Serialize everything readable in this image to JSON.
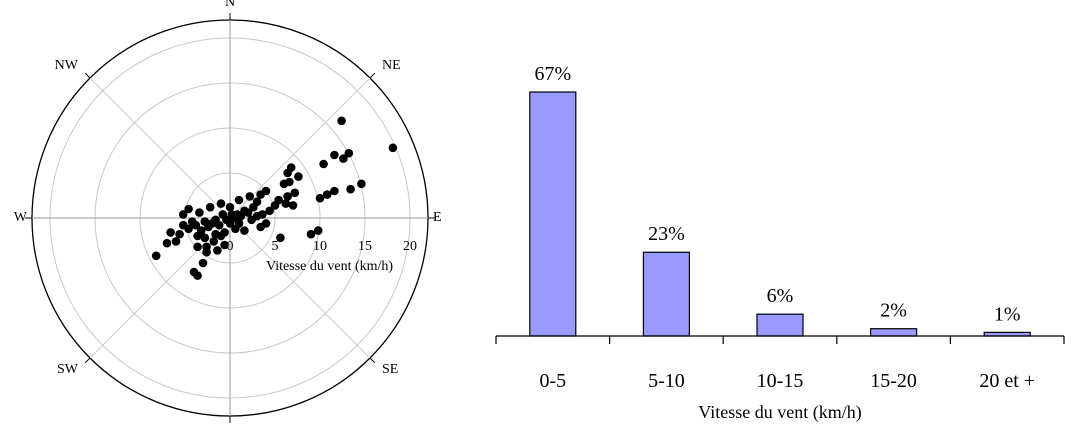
{
  "chart_data": [
    {
      "type": "scatter",
      "coordinate_system": "polar",
      "radial_label": "Vitesse du vent (km/h)",
      "radial_ticks": [
        0,
        5,
        10,
        15,
        20
      ],
      "radial_max": 22,
      "grid": true,
      "directions": [
        {
          "label": "N",
          "angle": 0
        },
        {
          "label": "NE",
          "angle": 45
        },
        {
          "label": "E",
          "angle": 90
        },
        {
          "label": "SE",
          "angle": 135
        },
        {
          "label": "S",
          "angle": 180
        },
        {
          "label": "SW",
          "angle": 225
        },
        {
          "label": "W",
          "angle": 270
        },
        {
          "label": "NW",
          "angle": 315
        }
      ],
      "point_color": "#000000",
      "points": [
        {
          "x": 18.1,
          "y": 7.8
        },
        {
          "x": 12.4,
          "y": 10.8
        },
        {
          "x": 13.2,
          "y": 7.2
        },
        {
          "x": 12.6,
          "y": 6.6
        },
        {
          "x": 11.6,
          "y": 7.0
        },
        {
          "x": 10.4,
          "y": 6.0
        },
        {
          "x": 14.6,
          "y": 3.8
        },
        {
          "x": 13.4,
          "y": 3.2
        },
        {
          "x": 11.6,
          "y": 3.0
        },
        {
          "x": 10.8,
          "y": 2.6
        },
        {
          "x": 10.0,
          "y": 2.2
        },
        {
          "x": 6.8,
          "y": 5.6
        },
        {
          "x": 6.4,
          "y": 5.0
        },
        {
          "x": 7.6,
          "y": 4.6
        },
        {
          "x": 6.6,
          "y": 4.0
        },
        {
          "x": 7.2,
          "y": 2.8
        },
        {
          "x": 6.4,
          "y": 2.4
        },
        {
          "x": 7.0,
          "y": 1.4
        },
        {
          "x": 6.2,
          "y": 1.6
        },
        {
          "x": 6.0,
          "y": 3.8
        },
        {
          "x": 4.0,
          "y": 3.0
        },
        {
          "x": 3.4,
          "y": 2.6
        },
        {
          "x": 5.4,
          "y": 2.0
        },
        {
          "x": 5.0,
          "y": 1.4
        },
        {
          "x": 4.4,
          "y": 0.8
        },
        {
          "x": 3.6,
          "y": 0.4
        },
        {
          "x": 3.0,
          "y": 0.2
        },
        {
          "x": 2.6,
          "y": 1.2
        },
        {
          "x": 2.0,
          "y": 0.6
        },
        {
          "x": 1.6,
          "y": 0.8
        },
        {
          "x": 1.2,
          "y": 0.2
        },
        {
          "x": 0.8,
          "y": 0.4
        },
        {
          "x": 0.4,
          "y": 0.0
        },
        {
          "x": 0.2,
          "y": 0.4
        },
        {
          "x": 4.0,
          "y": -0.6
        },
        {
          "x": 3.4,
          "y": -1.0
        },
        {
          "x": 5.6,
          "y": -2.2
        },
        {
          "x": 9.0,
          "y": -1.8
        },
        {
          "x": 9.8,
          "y": -1.4
        },
        {
          "x": 0.0,
          "y": -0.6
        },
        {
          "x": -0.4,
          "y": -0.2
        },
        {
          "x": -0.8,
          "y": 0.4
        },
        {
          "x": -1.2,
          "y": -0.8
        },
        {
          "x": -1.6,
          "y": -0.2
        },
        {
          "x": -2.0,
          "y": -0.6
        },
        {
          "x": -2.4,
          "y": -1.0
        },
        {
          "x": -2.8,
          "y": -0.4
        },
        {
          "x": -3.2,
          "y": -1.4
        },
        {
          "x": -3.4,
          "y": 0.6
        },
        {
          "x": -3.8,
          "y": -0.8
        },
        {
          "x": -4.2,
          "y": -0.4
        },
        {
          "x": -4.6,
          "y": -1.2
        },
        {
          "x": -5.2,
          "y": -0.8
        },
        {
          "x": -5.6,
          "y": -1.8
        },
        {
          "x": -6.6,
          "y": -1.6
        },
        {
          "x": -8.2,
          "y": -4.2
        },
        {
          "x": -7.0,
          "y": -2.8
        },
        {
          "x": -6.0,
          "y": -2.6
        },
        {
          "x": -3.6,
          "y": -3.2
        },
        {
          "x": -2.6,
          "y": -3.8
        },
        {
          "x": -3.0,
          "y": -5.0
        },
        {
          "x": -4.0,
          "y": -6.0
        },
        {
          "x": -3.6,
          "y": -6.4
        },
        {
          "x": -2.6,
          "y": -3.2
        },
        {
          "x": -1.8,
          "y": -2.6
        },
        {
          "x": -1.0,
          "y": -2.0
        },
        {
          "x": -0.6,
          "y": -3.0
        },
        {
          "x": -1.4,
          "y": -3.6
        },
        {
          "x": 0.6,
          "y": -1.2
        },
        {
          "x": 1.0,
          "y": -0.6
        },
        {
          "x": 1.6,
          "y": -1.4
        },
        {
          "x": 2.4,
          "y": -0.2
        },
        {
          "x": -4.6,
          "y": 1.0
        },
        {
          "x": -5.2,
          "y": 0.4
        },
        {
          "x": -2.2,
          "y": 1.2
        },
        {
          "x": -1.0,
          "y": 1.6
        },
        {
          "x": 0.0,
          "y": 1.2
        },
        {
          "x": 1.0,
          "y": 2.0
        },
        {
          "x": 2.2,
          "y": 2.4
        },
        {
          "x": 3.0,
          "y": 1.8
        },
        {
          "x": -2.8,
          "y": -2.2
        },
        {
          "x": -1.6,
          "y": -1.8
        },
        {
          "x": -0.6,
          "y": -1.6
        },
        {
          "x": -3.6,
          "y": -2.0
        }
      ]
    },
    {
      "type": "bar",
      "categories": [
        "0-5",
        "5-10",
        "10-15",
        "15-20",
        "20 et +"
      ],
      "values": [
        67,
        23,
        6,
        2,
        1
      ],
      "value_labels": [
        "67%",
        "23%",
        "6%",
        "2%",
        "1%"
      ],
      "xlabel": "Vitesse du vent (km/h)",
      "ylabel": "",
      "ylim": [
        0,
        75
      ],
      "bar_color": "#9999ff",
      "bar_edge_color": "#000000",
      "grid": false
    }
  ]
}
